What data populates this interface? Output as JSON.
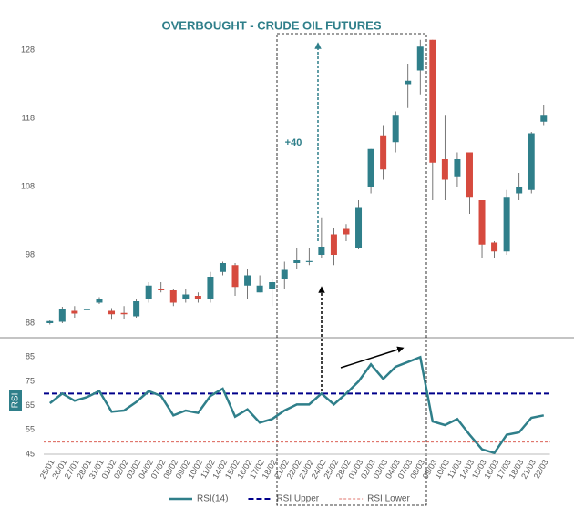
{
  "chart_data": [
    {
      "type": "candlestick",
      "title": "OVERBOUGHT - CRUDE OIL FUTURES",
      "annotation": "+40",
      "open": [
        88.0,
        88.2,
        89.8,
        89.9,
        91.0,
        89.8,
        89.5,
        89.0,
        91.5,
        93.0,
        92.8,
        91.5,
        92.0,
        91.5,
        95.5,
        96.5,
        93.5,
        92.5,
        93.0,
        94.5,
        96.8,
        97.0,
        98.0,
        101.0,
        101.8,
        99.0,
        108.0,
        115.5,
        114.5,
        123.0,
        125.0,
        129.5,
        112.0,
        109.5,
        113.0,
        106.0,
        99.8,
        98.5,
        107.0,
        107.5,
        117.5
      ],
      "high": [
        88.4,
        90.4,
        90.5,
        91.5,
        91.8,
        90.2,
        90.5,
        91.5,
        94.0,
        94.0,
        93.0,
        93.0,
        92.5,
        95.5,
        97.0,
        96.8,
        96.0,
        95.0,
        94.5,
        97.0,
        99.0,
        99.0,
        103.5,
        102.0,
        102.5,
        106.0,
        113.5,
        117.0,
        119.0,
        126.0,
        129.5,
        129.5,
        118.5,
        113.0,
        113.0,
        106.0,
        100.0,
        107.5,
        110.0,
        116.0,
        120.0
      ],
      "low": [
        87.8,
        88.0,
        88.8,
        89.5,
        90.8,
        88.5,
        88.6,
        88.8,
        91.0,
        92.5,
        90.5,
        91.0,
        91.0,
        91.0,
        95.0,
        92.0,
        91.5,
        92.5,
        90.5,
        93.0,
        96.0,
        96.5,
        97.5,
        96.5,
        100.0,
        98.8,
        107.0,
        109.0,
        113.0,
        119.5,
        121.5,
        106.0,
        106.0,
        108.0,
        104.0,
        97.5,
        97.5,
        98.0,
        106.0,
        107.0,
        117.0
      ],
      "close": [
        88.3,
        90.0,
        89.4,
        90.1,
        91.5,
        89.3,
        89.3,
        91.2,
        93.5,
        92.8,
        91.0,
        92.2,
        91.5,
        94.8,
        96.8,
        93.3,
        95.0,
        93.5,
        94.0,
        95.8,
        97.2,
        97.1,
        99.2,
        98.0,
        101.0,
        105.0,
        113.5,
        110.5,
        118.5,
        123.5,
        128.5,
        111.5,
        109.0,
        112.0,
        106.5,
        99.5,
        98.5,
        106.5,
        108.0,
        115.8,
        118.5
      ],
      "up_color": "#2f7f8a",
      "down_color": "#d64a3e",
      "ylim": [
        86,
        130
      ],
      "yticks": [
        88,
        98,
        108,
        118,
        128
      ]
    },
    {
      "type": "line",
      "ylabel": "RSI",
      "categories": [
        "25/01",
        "26/01",
        "27/01",
        "28/01",
        "31/01",
        "01/02",
        "02/02",
        "03/02",
        "04/02",
        "07/02",
        "08/02",
        "09/02",
        "10/02",
        "11/02",
        "14/02",
        "15/02",
        "16/02",
        "17/02",
        "18/02",
        "21/02",
        "22/02",
        "23/02",
        "24/02",
        "25/02",
        "28/02",
        "01/03",
        "02/03",
        "03/03",
        "04/03",
        "07/03",
        "08/03",
        "09/03",
        "10/03",
        "11/03",
        "14/03",
        "15/03",
        "16/03",
        "17/03",
        "18/03",
        "21/03",
        "22/03"
      ],
      "series": [
        {
          "name": "RSI(14)",
          "color": "#2f7f8a",
          "values": [
            66,
            70,
            67,
            68.5,
            71,
            62.5,
            63,
            66.5,
            71,
            69,
            61,
            63,
            62,
            69,
            72,
            60.5,
            63.5,
            58,
            59.5,
            63,
            65.5,
            65.5,
            70,
            65.5,
            70,
            75,
            82,
            76,
            81,
            83,
            85,
            58.5,
            57,
            59.5,
            53,
            47,
            45.5,
            53,
            54,
            60,
            61
          ]
        }
      ],
      "reference_lines": [
        {
          "name": "RSI Upper",
          "value": 70,
          "color": "#00008b"
        },
        {
          "name": "RSI Lower",
          "value": 50,
          "color": "#d64a3e"
        }
      ],
      "ylim": [
        45,
        90
      ],
      "yticks": [
        45,
        55,
        65,
        75,
        85
      ]
    }
  ]
}
